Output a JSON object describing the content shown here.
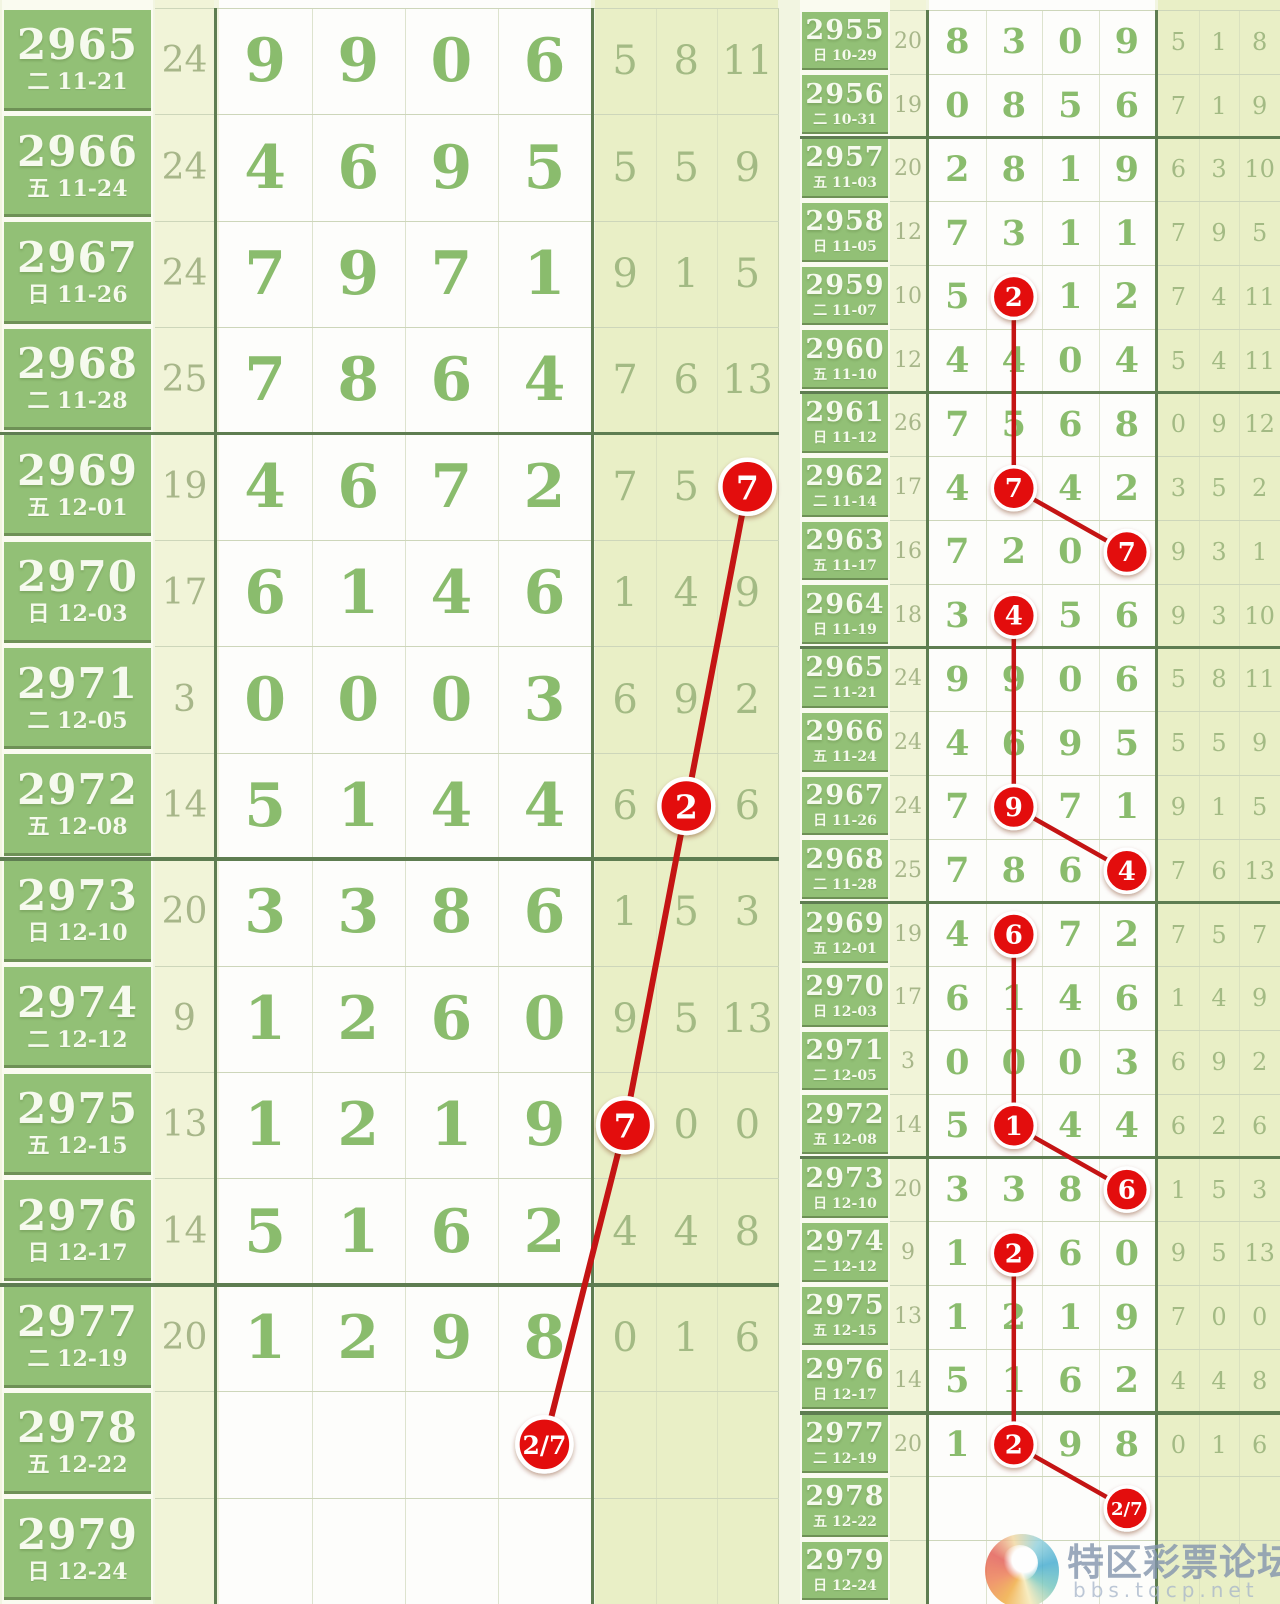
{
  "watermark": {
    "title": "特区彩票论坛",
    "subtitle": "bbs.tqcp.net"
  },
  "colors": {
    "issue_green": "#92c076",
    "digit_green": "#8abc6d",
    "sum_column_bg": "#f1f4d8",
    "extras_column_bg": "#e9efc6",
    "grid_thick": "#5e7d51",
    "circle_red": "#e31111",
    "line_red": "#c41414"
  },
  "chart_data": [
    {
      "type": "table",
      "name": "left-panel",
      "columns": [
        "issue",
        "weekday",
        "date",
        "sum",
        "digit1",
        "digit2",
        "digit3",
        "digit4",
        "extra1",
        "extra2",
        "extra3"
      ],
      "group_separators_after": [
        "2968",
        "2972",
        "2976"
      ],
      "rows": [
        {
          "issue": "2965",
          "week": "二",
          "date": "11-21",
          "sum": "24",
          "digits": [
            "9",
            "9",
            "0",
            "6"
          ],
          "extras": [
            "5",
            "8",
            "11"
          ]
        },
        {
          "issue": "2966",
          "week": "五",
          "date": "11-24",
          "sum": "24",
          "digits": [
            "4",
            "6",
            "9",
            "5"
          ],
          "extras": [
            "5",
            "5",
            "9"
          ]
        },
        {
          "issue": "2967",
          "week": "日",
          "date": "11-26",
          "sum": "24",
          "digits": [
            "7",
            "9",
            "7",
            "1"
          ],
          "extras": [
            "9",
            "1",
            "5"
          ]
        },
        {
          "issue": "2968",
          "week": "二",
          "date": "11-28",
          "sum": "25",
          "digits": [
            "7",
            "8",
            "6",
            "4"
          ],
          "extras": [
            "7",
            "6",
            "13"
          ]
        },
        {
          "issue": "2969",
          "week": "五",
          "date": "12-01",
          "sum": "19",
          "digits": [
            "4",
            "6",
            "7",
            "2"
          ],
          "extras": [
            "7",
            "5",
            "7"
          ]
        },
        {
          "issue": "2970",
          "week": "日",
          "date": "12-03",
          "sum": "17",
          "digits": [
            "6",
            "1",
            "4",
            "6"
          ],
          "extras": [
            "1",
            "4",
            "9"
          ]
        },
        {
          "issue": "2971",
          "week": "二",
          "date": "12-05",
          "sum": "3",
          "digits": [
            "0",
            "0",
            "0",
            "3"
          ],
          "extras": [
            "6",
            "9",
            "2"
          ]
        },
        {
          "issue": "2972",
          "week": "五",
          "date": "12-08",
          "sum": "14",
          "digits": [
            "5",
            "1",
            "4",
            "4"
          ],
          "extras": [
            "6",
            "2",
            "6"
          ]
        },
        {
          "issue": "2973",
          "week": "日",
          "date": "12-10",
          "sum": "20",
          "digits": [
            "3",
            "3",
            "8",
            "6"
          ],
          "extras": [
            "1",
            "5",
            "3"
          ]
        },
        {
          "issue": "2974",
          "week": "二",
          "date": "12-12",
          "sum": "9",
          "digits": [
            "1",
            "2",
            "6",
            "0"
          ],
          "extras": [
            "9",
            "5",
            "13"
          ]
        },
        {
          "issue": "2975",
          "week": "五",
          "date": "12-15",
          "sum": "13",
          "digits": [
            "1",
            "2",
            "1",
            "9"
          ],
          "extras": [
            "7",
            "0",
            "0"
          ]
        },
        {
          "issue": "2976",
          "week": "日",
          "date": "12-17",
          "sum": "14",
          "digits": [
            "5",
            "1",
            "6",
            "2"
          ],
          "extras": [
            "4",
            "4",
            "8"
          ]
        },
        {
          "issue": "2977",
          "week": "二",
          "date": "12-19",
          "sum": "20",
          "digits": [
            "1",
            "2",
            "9",
            "8"
          ],
          "extras": [
            "0",
            "1",
            "6"
          ]
        },
        {
          "issue": "2978",
          "week": "五",
          "date": "12-22",
          "sum": "",
          "digits": [
            "",
            "",
            "",
            ""
          ],
          "extras": [
            "",
            "",
            ""
          ]
        },
        {
          "issue": "2979",
          "week": "日",
          "date": "12-24",
          "sum": "",
          "digits": [
            "",
            "",
            "",
            ""
          ],
          "extras": [
            "",
            "",
            ""
          ]
        }
      ],
      "marks": [
        {
          "issue": "2969",
          "col": "extra3",
          "label": "7"
        },
        {
          "issue": "2972",
          "col": "extra2",
          "label": "2"
        },
        {
          "issue": "2975",
          "col": "extra1",
          "label": "7"
        },
        {
          "issue": "2978",
          "col": "digit4",
          "label": "2/7"
        }
      ],
      "paths": [
        [
          0,
          1,
          2,
          3
        ]
      ]
    },
    {
      "type": "table",
      "name": "right-panel",
      "columns": [
        "issue",
        "weekday",
        "date",
        "sum",
        "digit1",
        "digit2",
        "digit3",
        "digit4",
        "extra1",
        "extra2",
        "extra3"
      ],
      "group_separators_after": [
        "2956",
        "2960",
        "2964",
        "2968",
        "2972",
        "2976"
      ],
      "rows": [
        {
          "issue": "2955",
          "week": "日",
          "date": "10-29",
          "sum": "20",
          "digits": [
            "8",
            "3",
            "0",
            "9"
          ],
          "extras": [
            "5",
            "1",
            "8"
          ]
        },
        {
          "issue": "2956",
          "week": "二",
          "date": "10-31",
          "sum": "19",
          "digits": [
            "0",
            "8",
            "5",
            "6"
          ],
          "extras": [
            "7",
            "1",
            "9"
          ]
        },
        {
          "issue": "2957",
          "week": "五",
          "date": "11-03",
          "sum": "20",
          "digits": [
            "2",
            "8",
            "1",
            "9"
          ],
          "extras": [
            "6",
            "3",
            "10"
          ]
        },
        {
          "issue": "2958",
          "week": "日",
          "date": "11-05",
          "sum": "12",
          "digits": [
            "7",
            "3",
            "1",
            "1"
          ],
          "extras": [
            "7",
            "9",
            "5"
          ]
        },
        {
          "issue": "2959",
          "week": "二",
          "date": "11-07",
          "sum": "10",
          "digits": [
            "5",
            "2",
            "1",
            "2"
          ],
          "extras": [
            "7",
            "4",
            "11"
          ]
        },
        {
          "issue": "2960",
          "week": "五",
          "date": "11-10",
          "sum": "12",
          "digits": [
            "4",
            "4",
            "0",
            "4"
          ],
          "extras": [
            "5",
            "4",
            "11"
          ]
        },
        {
          "issue": "2961",
          "week": "日",
          "date": "11-12",
          "sum": "26",
          "digits": [
            "7",
            "5",
            "6",
            "8"
          ],
          "extras": [
            "0",
            "9",
            "12"
          ]
        },
        {
          "issue": "2962",
          "week": "二",
          "date": "11-14",
          "sum": "17",
          "digits": [
            "4",
            "7",
            "4",
            "2"
          ],
          "extras": [
            "3",
            "5",
            "2"
          ]
        },
        {
          "issue": "2963",
          "week": "五",
          "date": "11-17",
          "sum": "16",
          "digits": [
            "7",
            "2",
            "0",
            "7"
          ],
          "extras": [
            "9",
            "3",
            "1"
          ]
        },
        {
          "issue": "2964",
          "week": "日",
          "date": "11-19",
          "sum": "18",
          "digits": [
            "3",
            "4",
            "5",
            "6"
          ],
          "extras": [
            "9",
            "3",
            "10"
          ]
        },
        {
          "issue": "2965",
          "week": "二",
          "date": "11-21",
          "sum": "24",
          "digits": [
            "9",
            "9",
            "0",
            "6"
          ],
          "extras": [
            "5",
            "8",
            "11"
          ]
        },
        {
          "issue": "2966",
          "week": "五",
          "date": "11-24",
          "sum": "24",
          "digits": [
            "4",
            "6",
            "9",
            "5"
          ],
          "extras": [
            "5",
            "5",
            "9"
          ]
        },
        {
          "issue": "2967",
          "week": "日",
          "date": "11-26",
          "sum": "24",
          "digits": [
            "7",
            "9",
            "7",
            "1"
          ],
          "extras": [
            "9",
            "1",
            "5"
          ]
        },
        {
          "issue": "2968",
          "week": "二",
          "date": "11-28",
          "sum": "25",
          "digits": [
            "7",
            "8",
            "6",
            "4"
          ],
          "extras": [
            "7",
            "6",
            "13"
          ]
        },
        {
          "issue": "2969",
          "week": "五",
          "date": "12-01",
          "sum": "19",
          "digits": [
            "4",
            "6",
            "7",
            "2"
          ],
          "extras": [
            "7",
            "5",
            "7"
          ]
        },
        {
          "issue": "2970",
          "week": "日",
          "date": "12-03",
          "sum": "17",
          "digits": [
            "6",
            "1",
            "4",
            "6"
          ],
          "extras": [
            "1",
            "4",
            "9"
          ]
        },
        {
          "issue": "2971",
          "week": "二",
          "date": "12-05",
          "sum": "3",
          "digits": [
            "0",
            "0",
            "0",
            "3"
          ],
          "extras": [
            "6",
            "9",
            "2"
          ]
        },
        {
          "issue": "2972",
          "week": "五",
          "date": "12-08",
          "sum": "14",
          "digits": [
            "5",
            "1",
            "4",
            "4"
          ],
          "extras": [
            "6",
            "2",
            "6"
          ]
        },
        {
          "issue": "2973",
          "week": "日",
          "date": "12-10",
          "sum": "20",
          "digits": [
            "3",
            "3",
            "8",
            "6"
          ],
          "extras": [
            "1",
            "5",
            "3"
          ]
        },
        {
          "issue": "2974",
          "week": "二",
          "date": "12-12",
          "sum": "9",
          "digits": [
            "1",
            "2",
            "6",
            "0"
          ],
          "extras": [
            "9",
            "5",
            "13"
          ]
        },
        {
          "issue": "2975",
          "week": "五",
          "date": "12-15",
          "sum": "13",
          "digits": [
            "1",
            "2",
            "1",
            "9"
          ],
          "extras": [
            "7",
            "0",
            "0"
          ]
        },
        {
          "issue": "2976",
          "week": "日",
          "date": "12-17",
          "sum": "14",
          "digits": [
            "5",
            "1",
            "6",
            "2"
          ],
          "extras": [
            "4",
            "4",
            "8"
          ]
        },
        {
          "issue": "2977",
          "week": "二",
          "date": "12-19",
          "sum": "20",
          "digits": [
            "1",
            "2",
            "9",
            "8"
          ],
          "extras": [
            "0",
            "1",
            "6"
          ]
        },
        {
          "issue": "2978",
          "week": "五",
          "date": "12-22",
          "sum": "",
          "digits": [
            "",
            "",
            "",
            ""
          ],
          "extras": [
            "",
            "",
            ""
          ]
        },
        {
          "issue": "2979",
          "week": "日",
          "date": "12-24",
          "sum": "",
          "digits": [
            "",
            "",
            "",
            ""
          ],
          "extras": [
            "",
            "",
            ""
          ]
        }
      ],
      "marks": [
        {
          "issue": "2959",
          "col": "digit2",
          "label": "2"
        },
        {
          "issue": "2962",
          "col": "digit2",
          "label": "7"
        },
        {
          "issue": "2963",
          "col": "digit4",
          "label": "7"
        },
        {
          "issue": "2964",
          "col": "digit2",
          "label": "4"
        },
        {
          "issue": "2967",
          "col": "digit2",
          "label": "9"
        },
        {
          "issue": "2968",
          "col": "digit4",
          "label": "4"
        },
        {
          "issue": "2969",
          "col": "digit2",
          "label": "6"
        },
        {
          "issue": "2972",
          "col": "digit2",
          "label": "1"
        },
        {
          "issue": "2973",
          "col": "digit4",
          "label": "6"
        },
        {
          "issue": "2974",
          "col": "digit2",
          "label": "2"
        },
        {
          "issue": "2977",
          "col": "digit2",
          "label": "2"
        },
        {
          "issue": "2978",
          "col": "digit4",
          "label": "2/7"
        }
      ],
      "paths": [
        [
          0,
          1,
          2
        ],
        [
          3,
          4,
          5
        ],
        [
          6,
          7,
          8
        ],
        [
          9,
          10,
          11
        ]
      ]
    }
  ]
}
